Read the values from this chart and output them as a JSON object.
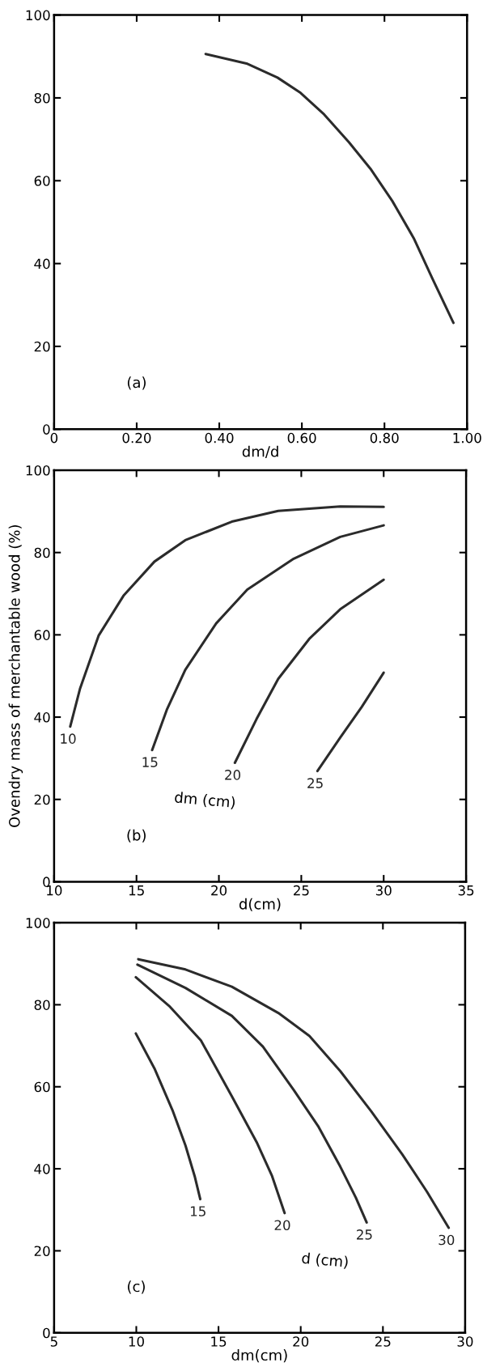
{
  "chart_data": [
    {
      "type": "line",
      "xlabel": "dm/d",
      "xlim": [
        0,
        1.0
      ],
      "ylim": [
        0,
        100
      ],
      "xticks": [
        0,
        {
          "value": 0.2,
          "label": "0.20"
        },
        {
          "value": 0.4,
          "label": "0.40"
        },
        {
          "value": 0.6,
          "label": "0.60"
        },
        {
          "value": 0.8,
          "label": "0.80"
        },
        {
          "value": 1.0,
          "label": "1.00"
        }
      ],
      "yticks": [
        0,
        20,
        40,
        60,
        80,
        100
      ],
      "grid": false,
      "legend": false,
      "marker": "none",
      "line_style": "solid",
      "annotations": [
        "(a)"
      ],
      "series": [
        {
          "color": "#2b2b2b",
          "x": [
            0.367,
            0.466,
            0.541,
            0.597,
            0.654,
            0.714,
            0.766,
            0.819,
            0.871,
            0.916,
            0.967
          ],
          "values": [
            90.6,
            88.3,
            84.9,
            81.2,
            76.0,
            69.3,
            62.9,
            55.1,
            46.1,
            36.4,
            25.7
          ]
        }
      ]
    },
    {
      "type": "line",
      "xlabel": "d(cm)",
      "ylabel": "Ovendry mass of merchantable wood (%)",
      "legend_title": "dm (cm)",
      "xlim": [
        10,
        35
      ],
      "ylim": [
        0,
        100
      ],
      "xticks": [
        10,
        15,
        20,
        25,
        30,
        35
      ],
      "yticks": [
        0,
        20,
        40,
        60,
        80,
        100
      ],
      "grid": false,
      "legend": false,
      "marker": "none",
      "line_style": "solid",
      "annotations": [
        "(b)"
      ],
      "series": [
        {
          "name": "10",
          "color": "#2b2b2b",
          "x": [
            10.98,
            11.58,
            12.7,
            14.21,
            16.09,
            17.96,
            20.78,
            23.6,
            27.36,
            30
          ],
          "values": [
            37.7,
            47.0,
            59.8,
            69.5,
            77.8,
            83.0,
            87.5,
            90.1,
            91.2,
            91.1
          ]
        },
        {
          "name": "15",
          "color": "#2b2b2b",
          "x": [
            15.95,
            16.84,
            17.96,
            19.84,
            21.72,
            24.54,
            27.36,
            30
          ],
          "values": [
            32.0,
            41.8,
            51.5,
            62.8,
            71.0,
            78.5,
            83.8,
            86.6
          ]
        },
        {
          "name": "20",
          "color": "#2b2b2b",
          "x": [
            20.97,
            22.28,
            23.6,
            25.48,
            27.36,
            30
          ],
          "values": [
            28.9,
            39.5,
            49.3,
            59.0,
            66.2,
            73.4
          ]
        },
        {
          "name": "25",
          "color": "#2b2b2b",
          "x": [
            25.98,
            27.36,
            28.67,
            30
          ],
          "values": [
            26.9,
            35.0,
            42.5,
            50.8
          ]
        }
      ]
    },
    {
      "type": "line",
      "xlabel": "dm(cm)",
      "legend_title": "d (cm)",
      "xlim": [
        5,
        30
      ],
      "ylim": [
        0,
        100
      ],
      "xticks": [
        5,
        10,
        15,
        20,
        25,
        30
      ],
      "yticks": [
        0,
        20,
        40,
        60,
        80,
        100
      ],
      "grid": false,
      "legend": false,
      "marker": "none",
      "line_style": "solid",
      "annotations": [
        "(c)"
      ],
      "series": [
        {
          "name": "15",
          "color": "#2b2b2b",
          "x": [
            9.97,
            11.1,
            12.23,
            12.99,
            13.55,
            13.89
          ],
          "values": [
            73.0,
            64.5,
            54.0,
            45.7,
            38.2,
            32.6
          ]
        },
        {
          "name": "20",
          "color": "#2b2b2b",
          "x": [
            9.97,
            12.05,
            13.93,
            15.81,
            17.32,
            18.26,
            19.02
          ],
          "values": [
            86.7,
            79.5,
            71.3,
            57.7,
            46.5,
            38.2,
            29.2
          ]
        },
        {
          "name": "25",
          "color": "#2b2b2b",
          "x": [
            10.07,
            12.99,
            15.81,
            17.7,
            19.58,
            21.09,
            22.41,
            23.35,
            24.01
          ],
          "values": [
            89.8,
            84.1,
            77.3,
            69.8,
            59.2,
            50.2,
            40.5,
            33.0,
            26.9
          ]
        },
        {
          "name": "30",
          "color": "#2b2b2b",
          "x": [
            10.12,
            12.99,
            15.81,
            18.64,
            20.53,
            22.41,
            24.29,
            26.18,
            27.68,
            29.0
          ],
          "values": [
            91.1,
            88.6,
            84.4,
            78.0,
            72.4,
            63.8,
            54.0,
            43.5,
            34.4,
            25.6
          ]
        }
      ]
    }
  ]
}
